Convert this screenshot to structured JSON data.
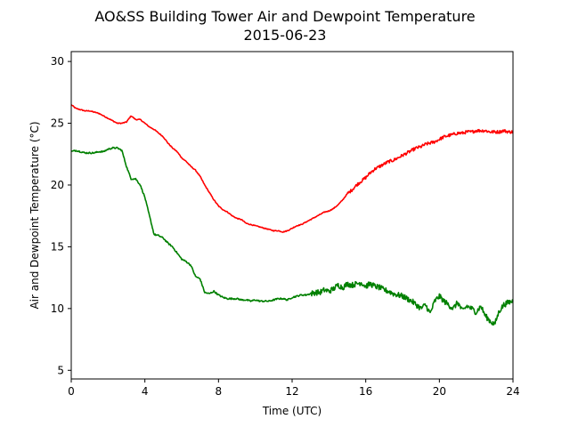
{
  "chart_data": {
    "type": "line",
    "title": "AO&SS Building Tower Air and Dewpoint Temperature",
    "subtitle": "2015-06-23",
    "xlabel": "Time (UTC)",
    "ylabel": "Air and Dewpoint Temperature (°C)",
    "xlim": [
      0,
      24
    ],
    "ylim": [
      4.3,
      30.8
    ],
    "xticks": [
      0,
      4,
      8,
      12,
      16,
      20,
      24
    ],
    "yticks": [
      5,
      10,
      15,
      20,
      25,
      30
    ],
    "grid": false,
    "series": [
      {
        "color": "#ff0000",
        "x": [
          0,
          0.25,
          0.5,
          0.75,
          1.0,
          1.25,
          1.5,
          1.75,
          2.0,
          2.25,
          2.5,
          2.75,
          3.0,
          3.25,
          3.5,
          3.75,
          4.0,
          4.25,
          4.5,
          4.75,
          5.0,
          5.25,
          5.5,
          5.75,
          6.0,
          6.25,
          6.5,
          6.75,
          7.0,
          7.25,
          7.5,
          7.75,
          8.0,
          8.25,
          8.5,
          8.75,
          9.0,
          9.25,
          9.5,
          9.75,
          10.0,
          10.25,
          10.5,
          10.75,
          11.0,
          11.25,
          11.5,
          11.75,
          12.0,
          12.25,
          12.5,
          12.75,
          13.0,
          13.25,
          13.5,
          13.75,
          14.0,
          14.25,
          14.5,
          14.75,
          15.0,
          15.25,
          15.5,
          15.75,
          16.0,
          16.25,
          16.5,
          16.75,
          17.0,
          17.25,
          17.5,
          17.75,
          18.0,
          18.25,
          18.5,
          18.75,
          19.0,
          19.25,
          19.5,
          19.75,
          20.0,
          20.25,
          20.5,
          20.75,
          21.0,
          21.25,
          21.5,
          21.75,
          22.0,
          22.25,
          22.5,
          22.75,
          23.0,
          23.25,
          23.5,
          23.75,
          24.0
        ],
        "values": [
          26.5,
          26.2,
          26.1,
          26.0,
          26.0,
          25.9,
          25.8,
          25.6,
          25.4,
          25.2,
          25.0,
          25.0,
          25.1,
          25.6,
          25.3,
          25.3,
          25.0,
          24.7,
          24.5,
          24.2,
          23.9,
          23.4,
          23.0,
          22.7,
          22.2,
          21.9,
          21.5,
          21.2,
          20.7,
          20.0,
          19.4,
          18.8,
          18.3,
          18.0,
          17.8,
          17.5,
          17.3,
          17.2,
          16.9,
          16.8,
          16.7,
          16.6,
          16.5,
          16.4,
          16.3,
          16.3,
          16.2,
          16.3,
          16.5,
          16.7,
          16.8,
          17.0,
          17.2,
          17.4,
          17.6,
          17.8,
          17.9,
          18.1,
          18.4,
          18.8,
          19.3,
          19.6,
          20.0,
          20.3,
          20.6,
          21.0,
          21.3,
          21.5,
          21.7,
          21.9,
          22.0,
          22.2,
          22.4,
          22.6,
          22.8,
          23.0,
          23.1,
          23.3,
          23.4,
          23.5,
          23.7,
          23.9,
          24.0,
          24.1,
          24.2,
          24.2,
          24.3,
          24.3,
          24.4,
          24.4,
          24.4,
          24.3,
          24.3,
          24.3,
          24.4,
          24.3,
          24.3
        ]
      },
      {
        "color": "#008000",
        "x": [
          0,
          0.25,
          0.5,
          0.75,
          1.0,
          1.25,
          1.5,
          1.75,
          2.0,
          2.25,
          2.5,
          2.75,
          3.0,
          3.25,
          3.5,
          3.75,
          4.0,
          4.25,
          4.5,
          4.75,
          5.0,
          5.25,
          5.5,
          5.75,
          6.0,
          6.25,
          6.5,
          6.75,
          7.0,
          7.25,
          7.5,
          7.75,
          8.0,
          8.25,
          8.5,
          8.75,
          9.0,
          9.25,
          9.5,
          9.75,
          10.0,
          10.25,
          10.5,
          10.75,
          11.0,
          11.25,
          11.5,
          11.75,
          12.0,
          12.25,
          12.5,
          12.75,
          13.0,
          13.25,
          13.5,
          13.75,
          14.0,
          14.25,
          14.5,
          14.75,
          15.0,
          15.25,
          15.5,
          15.75,
          16.0,
          16.25,
          16.5,
          16.75,
          17.0,
          17.25,
          17.5,
          17.75,
          18.0,
          18.25,
          18.5,
          18.75,
          19.0,
          19.25,
          19.5,
          19.75,
          20.0,
          20.25,
          20.5,
          20.75,
          21.0,
          21.25,
          21.5,
          21.75,
          22.0,
          22.25,
          22.5,
          22.75,
          23.0,
          23.25,
          23.5,
          23.75,
          24.0
        ],
        "values": [
          22.7,
          22.8,
          22.7,
          22.6,
          22.6,
          22.6,
          22.7,
          22.7,
          22.9,
          23.0,
          23.0,
          22.8,
          21.5,
          20.5,
          20.5,
          20.0,
          19.0,
          17.5,
          16.0,
          15.9,
          15.7,
          15.3,
          15.0,
          14.5,
          14.0,
          13.8,
          13.5,
          12.6,
          12.4,
          11.3,
          11.2,
          11.4,
          11.1,
          10.9,
          10.8,
          10.8,
          10.8,
          10.7,
          10.7,
          10.6,
          10.7,
          10.6,
          10.6,
          10.6,
          10.7,
          10.8,
          10.8,
          10.7,
          10.9,
          11.0,
          11.1,
          11.1,
          11.2,
          11.3,
          11.3,
          11.5,
          11.4,
          11.6,
          11.9,
          11.7,
          12.0,
          11.9,
          12.0,
          12.1,
          11.8,
          12.0,
          11.8,
          11.7,
          11.5,
          11.4,
          11.2,
          11.1,
          11.0,
          10.8,
          10.6,
          10.3,
          10.0,
          10.3,
          9.6,
          10.6,
          11.0,
          10.6,
          10.3,
          10.0,
          10.5,
          9.8,
          10.2,
          10.0,
          9.7,
          10.2,
          9.4,
          9.0,
          8.7,
          9.8,
          10.3,
          10.5,
          10.6
        ]
      }
    ]
  }
}
